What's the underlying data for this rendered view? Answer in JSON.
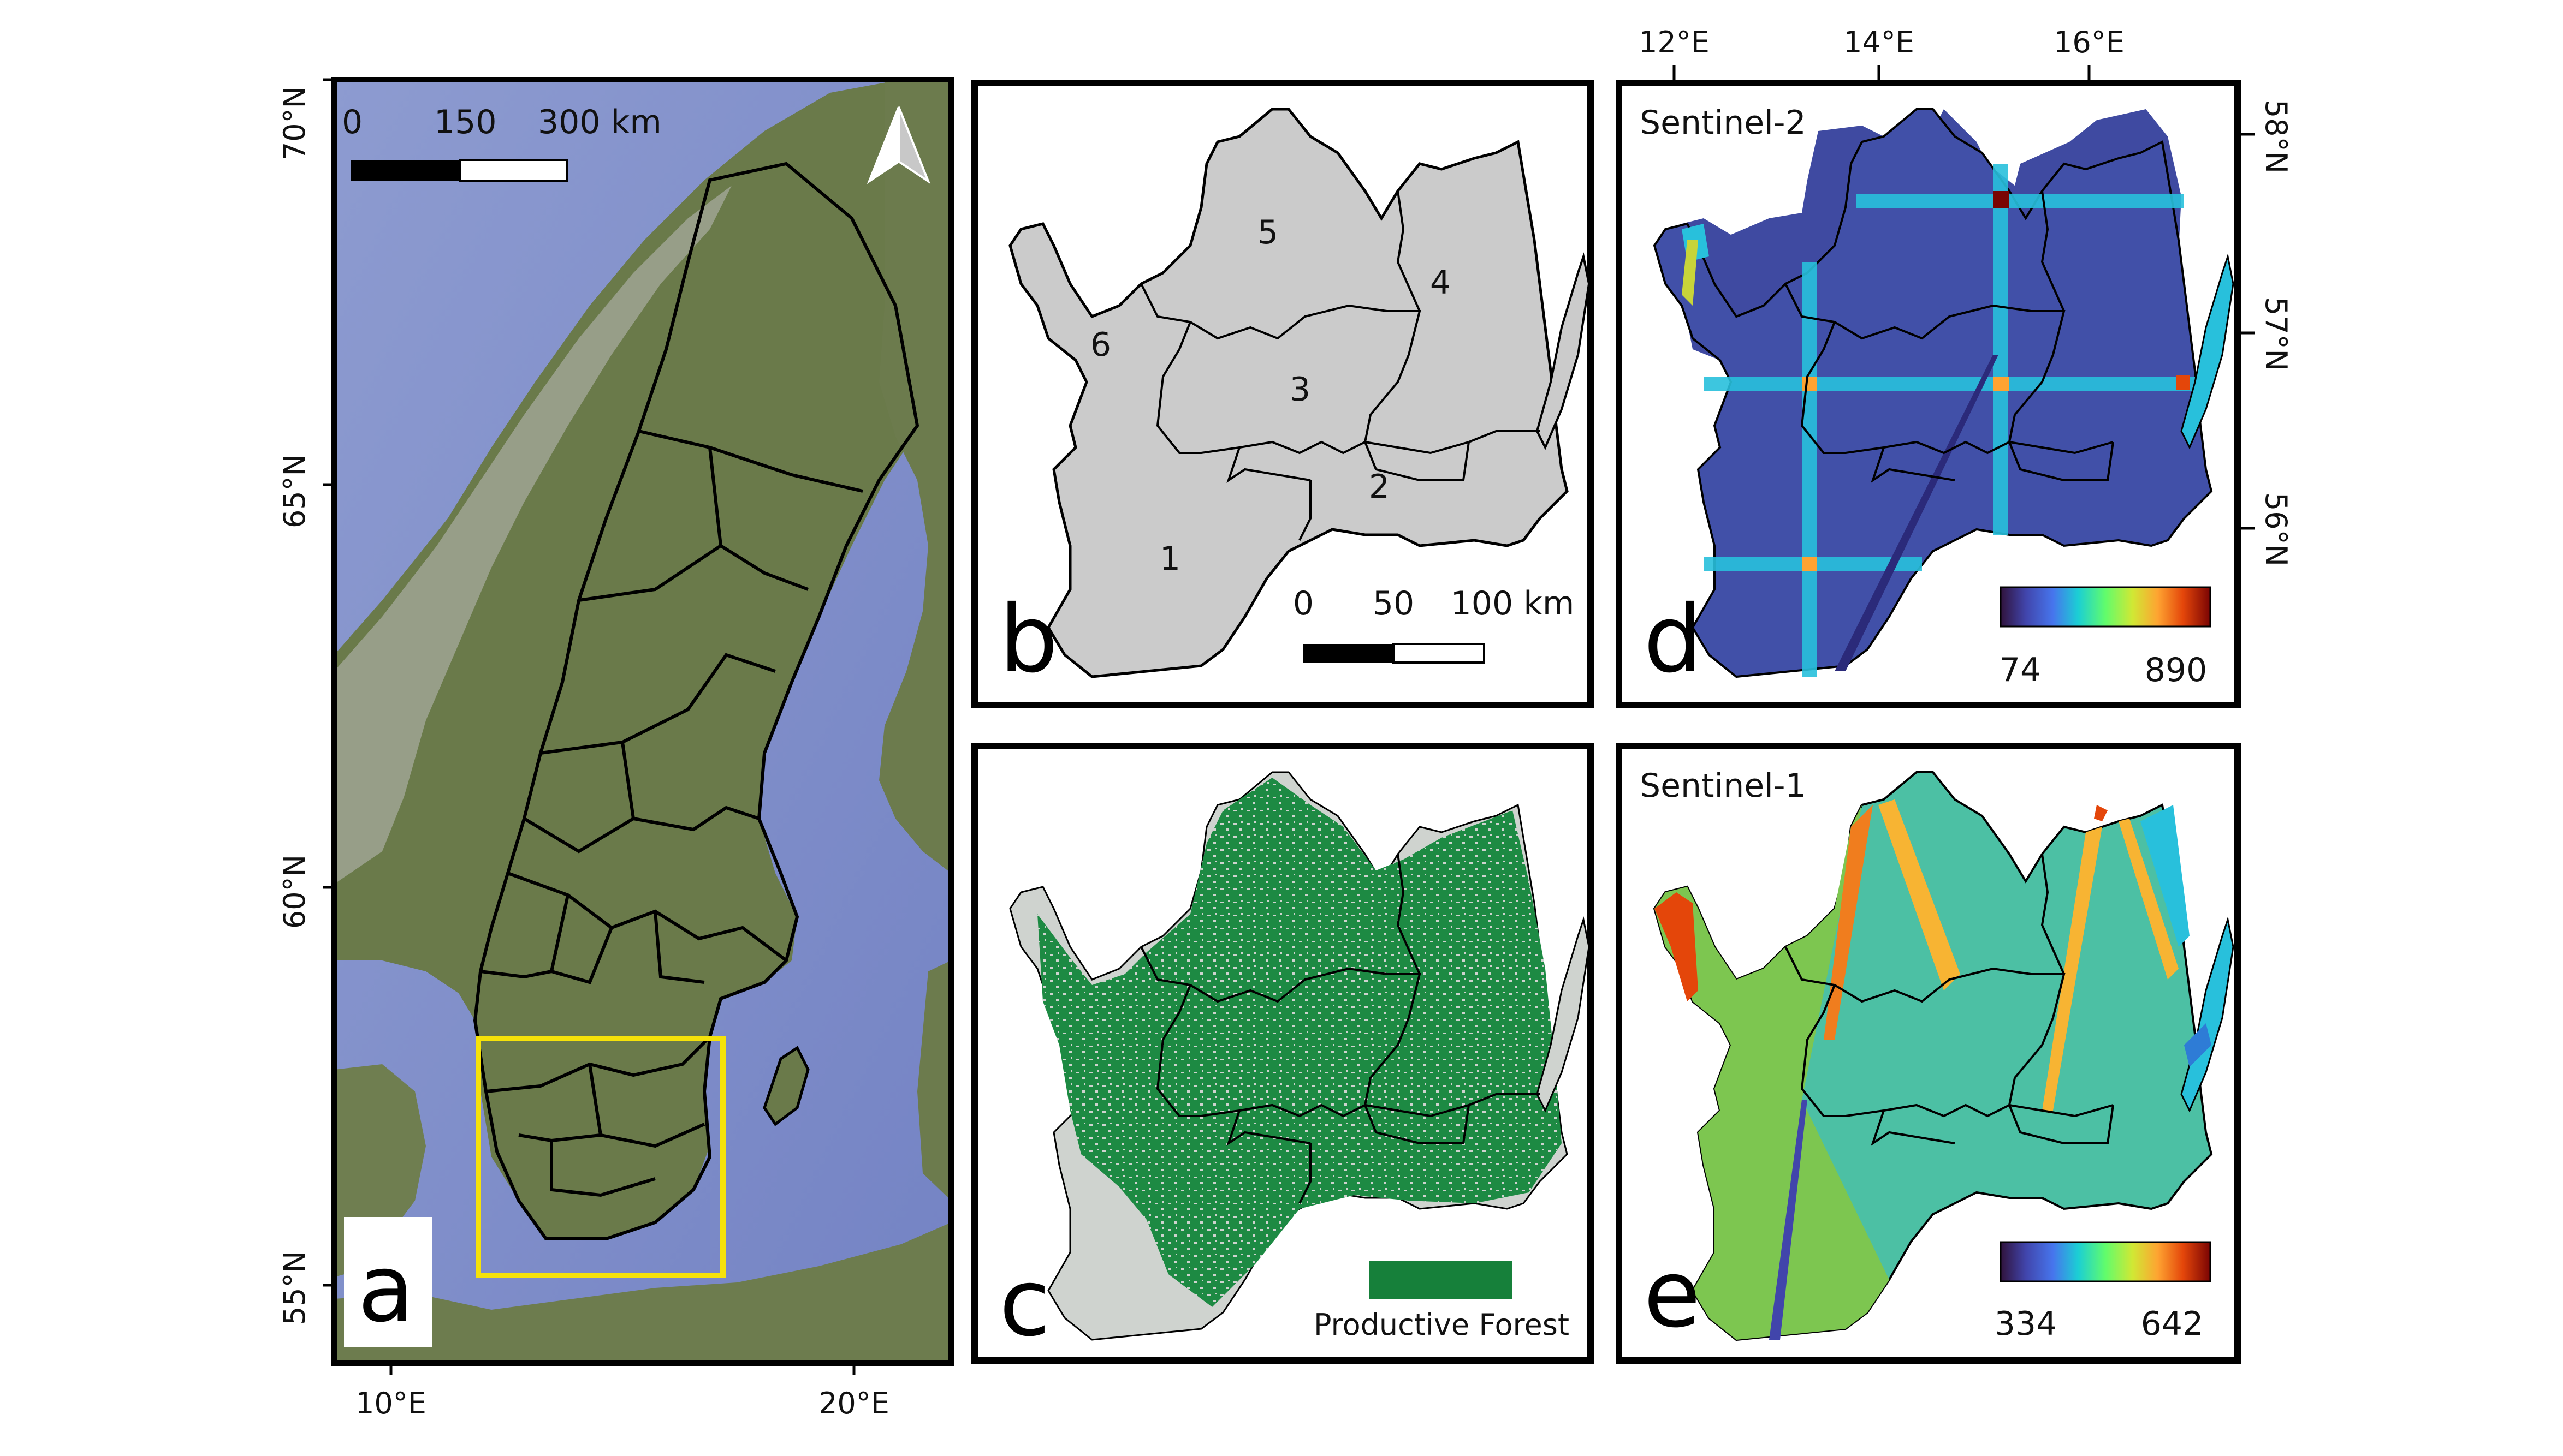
{
  "panel_a": {
    "letter": "a",
    "lat_labels": [
      "70°N",
      "65°N",
      "60°N",
      "55°N"
    ],
    "lon_labels": [
      "10°E",
      "20°E"
    ],
    "scale_labels": [
      "0",
      "150",
      "300 km"
    ],
    "north_arrow_icon": "north-arrow-icon",
    "study_area_color": "#f5e20a"
  },
  "panel_b": {
    "letter": "b",
    "region_numbers": [
      "1",
      "2",
      "3",
      "4",
      "5",
      "6"
    ],
    "scale_labels": [
      "0",
      "50",
      "100 km"
    ],
    "fill_color": "#cbcbcb"
  },
  "panel_c": {
    "letter": "c",
    "legend_label": "Productive Forest",
    "forest_color": "#16803a"
  },
  "panel_d": {
    "letter": "d",
    "title": "Sentinel-2",
    "top_lon_labels": [
      "12°E",
      "14°E",
      "16°E"
    ],
    "right_lat_labels": [
      "58°N",
      "57°N",
      "56°N"
    ],
    "colorbar_min": "74",
    "colorbar_max": "890"
  },
  "panel_e": {
    "letter": "e",
    "title": "Sentinel-1",
    "colorbar_min": "334",
    "colorbar_max": "642"
  }
}
